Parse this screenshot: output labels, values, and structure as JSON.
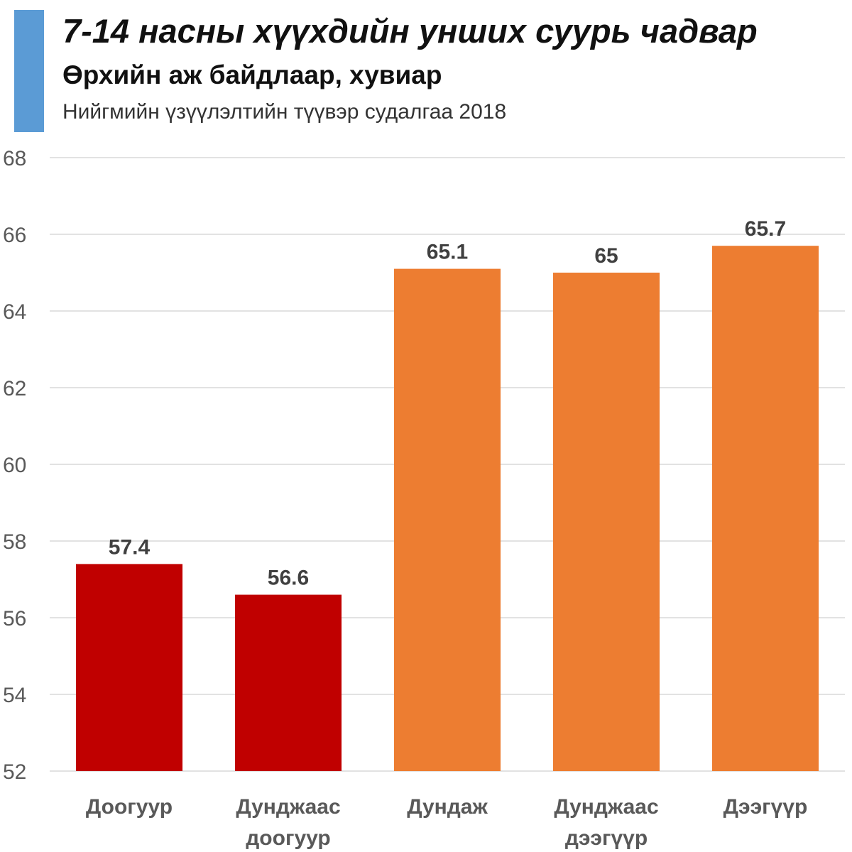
{
  "header": {
    "title": "7-14 насны хүүхдийн унших суурь чадвар",
    "subtitle": "Өрхийн аж байдлаар, хувиар",
    "source": "Нийгмийн үзүүлэлтийн түүвэр судалгаа 2018",
    "accent_color": "#5b9bd5"
  },
  "chart_data": {
    "type": "bar",
    "title": "7-14 насны хүүхдийн унших суурь чадвар",
    "subtitle": "Өрхийн аж байдлаар, хувиар",
    "xlabel": "",
    "ylabel": "",
    "categories": [
      [
        "Доогуур"
      ],
      [
        "Дунджаас",
        "доогуур"
      ],
      [
        "Дундаж"
      ],
      [
        "Дунджаас",
        "дээгүүр"
      ],
      [
        "Дээгүүр"
      ]
    ],
    "values": [
      57.4,
      56.6,
      65.1,
      65,
      65.7
    ],
    "value_labels": [
      "57.4",
      "56.6",
      "65.1",
      "65",
      "65.7"
    ],
    "bar_colors": [
      "#c00000",
      "#c00000",
      "#ed7d31",
      "#ed7d31",
      "#ed7d31"
    ],
    "ylim": [
      52,
      68
    ],
    "yticks": [
      52,
      54,
      56,
      58,
      60,
      62,
      64,
      66,
      68
    ],
    "grid": true,
    "legend": "none"
  }
}
